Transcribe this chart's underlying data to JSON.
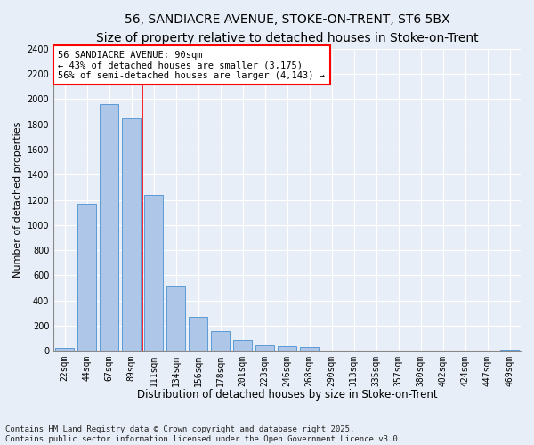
{
  "title1": "56, SANDIACRE AVENUE, STOKE-ON-TRENT, ST6 5BX",
  "title2": "Size of property relative to detached houses in Stoke-on-Trent",
  "xlabel": "Distribution of detached houses by size in Stoke-on-Trent",
  "ylabel": "Number of detached properties",
  "categories": [
    "22sqm",
    "44sqm",
    "67sqm",
    "89sqm",
    "111sqm",
    "134sqm",
    "156sqm",
    "178sqm",
    "201sqm",
    "223sqm",
    "246sqm",
    "268sqm",
    "290sqm",
    "313sqm",
    "335sqm",
    "357sqm",
    "380sqm",
    "402sqm",
    "424sqm",
    "447sqm",
    "469sqm"
  ],
  "values": [
    25,
    1170,
    1960,
    1850,
    1240,
    520,
    270,
    155,
    85,
    45,
    35,
    30,
    3,
    2,
    1,
    1,
    1,
    0,
    0,
    0,
    10
  ],
  "bar_color": "#aec6e8",
  "bar_edge_color": "#5b9bd5",
  "vline_x_index": 3.5,
  "vline_color": "red",
  "annotation_text": "56 SANDIACRE AVENUE: 90sqm\n← 43% of detached houses are smaller (3,175)\n56% of semi-detached houses are larger (4,143) →",
  "annotation_box_color": "white",
  "annotation_box_edge": "red",
  "ylim": [
    0,
    2400
  ],
  "yticks": [
    0,
    200,
    400,
    600,
    800,
    1000,
    1200,
    1400,
    1600,
    1800,
    2000,
    2200,
    2400
  ],
  "background_color": "#e8eef7",
  "grid_color": "white",
  "footer": "Contains HM Land Registry data © Crown copyright and database right 2025.\nContains public sector information licensed under the Open Government Licence v3.0.",
  "title1_fontsize": 10,
  "title2_fontsize": 9,
  "xlabel_fontsize": 8.5,
  "ylabel_fontsize": 8,
  "tick_fontsize": 7,
  "annotation_fontsize": 7.5,
  "footer_fontsize": 6.5
}
